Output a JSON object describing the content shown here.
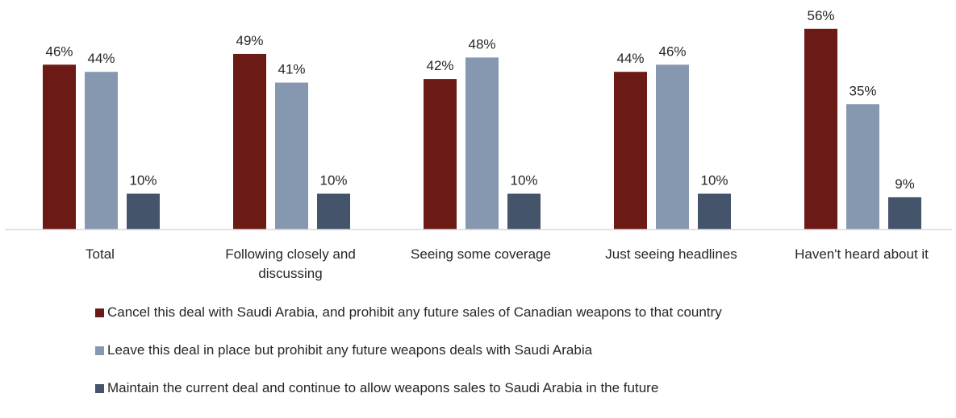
{
  "chart_data": {
    "type": "bar",
    "categories": [
      "Total",
      "Following closely and discussing",
      "Seeing some coverage",
      "Just seeing headlines",
      "Haven't heard about it"
    ],
    "series": [
      {
        "name": "Cancel this deal with Saudi Arabia, and prohibit any future sales of Canadian weapons to that country",
        "color": "#6b1a16",
        "values": [
          46,
          49,
          42,
          44,
          56
        ],
        "labels": [
          "46%",
          "49%",
          "42%",
          "44%",
          "56%"
        ]
      },
      {
        "name": "Leave this deal in place but prohibit any future weapons deals with Saudi Arabia",
        "color": "#8698b0",
        "values": [
          44,
          41,
          48,
          46,
          35
        ],
        "labels": [
          "44%",
          "41%",
          "48%",
          "46%",
          "35%"
        ]
      },
      {
        "name": "Maintain the current deal and continue to allow weapons sales to Saudi Arabia in the future",
        "color": "#44546a",
        "values": [
          10,
          10,
          10,
          10,
          9
        ],
        "labels": [
          "10%",
          "10%",
          "10%",
          "10%",
          "9%"
        ]
      }
    ],
    "unit": "%",
    "ylim": [
      0,
      60
    ],
    "grid": false,
    "legend_position": "bottom",
    "title": "",
    "xlabel": "",
    "ylabel": ""
  }
}
